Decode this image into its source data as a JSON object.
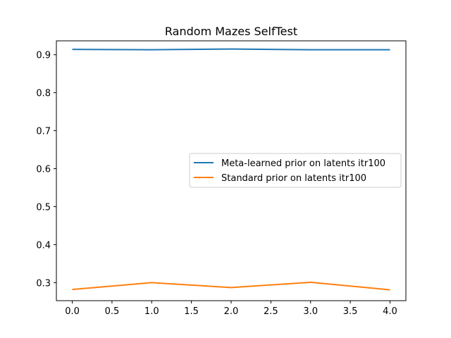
{
  "chart_data": {
    "type": "line",
    "title": "Random Mazes SelfTest",
    "xlabel": "",
    "ylabel": "",
    "x": [
      0,
      1,
      2,
      3,
      4
    ],
    "xlim": [
      -0.2,
      4.2
    ],
    "ylim": [
      0.2525,
      0.9365
    ],
    "xticks": [
      "0.0",
      "0.5",
      "1.0",
      "1.5",
      "2.0",
      "2.5",
      "3.0",
      "3.5",
      "4.0"
    ],
    "yticks": [
      "0.3",
      "0.4",
      "0.5",
      "0.6",
      "0.7",
      "0.8",
      "0.9"
    ],
    "grid": false,
    "legend_position": "center-right",
    "series": [
      {
        "name": "Meta-learned prior on latents itr100",
        "color": "#1f77b4",
        "values": [
          0.914,
          0.913,
          0.915,
          0.913,
          0.913
        ]
      },
      {
        "name": "Standard prior on latents itr100",
        "color": "#ff7f0e",
        "values": [
          0.282,
          0.3,
          0.287,
          0.301,
          0.281
        ]
      }
    ]
  }
}
